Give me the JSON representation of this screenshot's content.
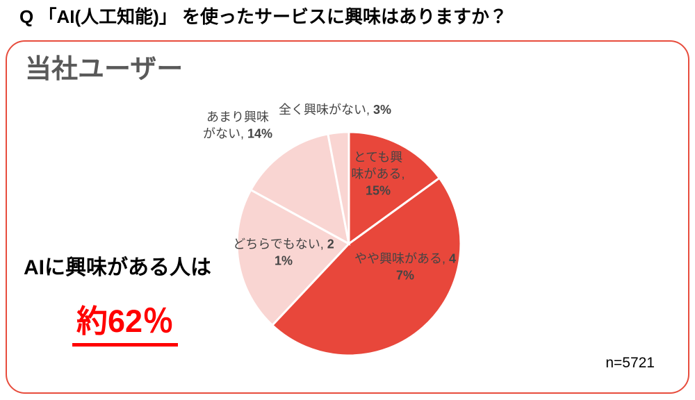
{
  "page": {
    "question_title": "Q 「AI(人工知能)」 を使ったサービスに興味はありますか？"
  },
  "panel": {
    "heading": "当社ユーザー",
    "annotation": {
      "lead": "AIに興味がある人は",
      "highlight": "約62％"
    },
    "sample_size": "n=5721"
  },
  "chart_data": {
    "type": "pie",
    "title": "当社ユーザー",
    "categories": [
      "とても興味がある",
      "やや興味がある",
      "どちらでもない",
      "あまり興味がない",
      "全く興味がない"
    ],
    "values": [
      15,
      47,
      21,
      14,
      3
    ],
    "data_label_format": "{category}, {value}%",
    "colors": [
      "#E8473B",
      "#E8473B",
      "#F9D5D2",
      "#F9D5D2",
      "#F9D5D2"
    ],
    "start_angle_deg": 0,
    "direction": "clockwise",
    "slice_border_color": "#FFFFFF",
    "legend": "none",
    "sample_size": "n=5721"
  },
  "colors": {
    "panel_border": "#E74C3C",
    "heading_gray": "#595959",
    "label_gray": "#444444",
    "highlight_red": "#FF0000"
  }
}
